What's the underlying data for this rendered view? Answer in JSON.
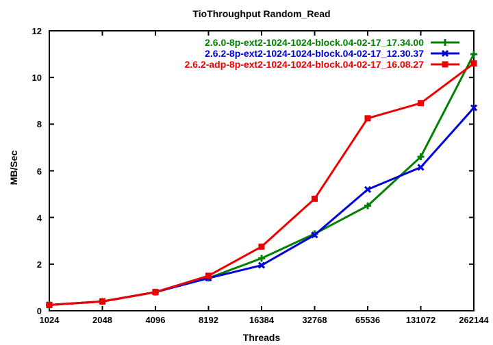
{
  "chart_data": {
    "type": "line",
    "title": "TioThroughput Random_Read",
    "xlabel": "Threads",
    "ylabel": "MB/Sec",
    "x_scale": "log2",
    "grid": false,
    "legend_position": "top-right-inside",
    "background": "#ffffff",
    "axis_color": "#000000",
    "ylim": [
      0,
      12
    ],
    "yticks": [
      0,
      2,
      4,
      6,
      8,
      10,
      12
    ],
    "categories": [
      "1024",
      "2048",
      "4096",
      "8192",
      "16384",
      "32768",
      "65536",
      "131072",
      "262144"
    ],
    "series": [
      {
        "name": "2.6.0-8p-ext2-1024-1024-block.04-02-17_17.34.00",
        "color": "#008000",
        "marker": "plus",
        "values": [
          0.25,
          0.4,
          0.8,
          1.4,
          2.25,
          3.3,
          4.5,
          6.6,
          11.0
        ]
      },
      {
        "name": "2.6.2-8p-ext2-1024-1024-block.04-02-17_12.30.37",
        "color": "#0000dd",
        "marker": "x",
        "values": [
          0.25,
          0.4,
          0.8,
          1.4,
          1.95,
          3.25,
          5.2,
          6.15,
          8.7
        ]
      },
      {
        "name": "2.6.2-adp-8p-ext2-1024-1024-block.04-02-17_16.08.27",
        "color": "#ee0000",
        "marker": "square",
        "values": [
          0.25,
          0.4,
          0.8,
          1.5,
          2.75,
          4.8,
          8.25,
          8.9,
          10.6
        ]
      }
    ]
  }
}
